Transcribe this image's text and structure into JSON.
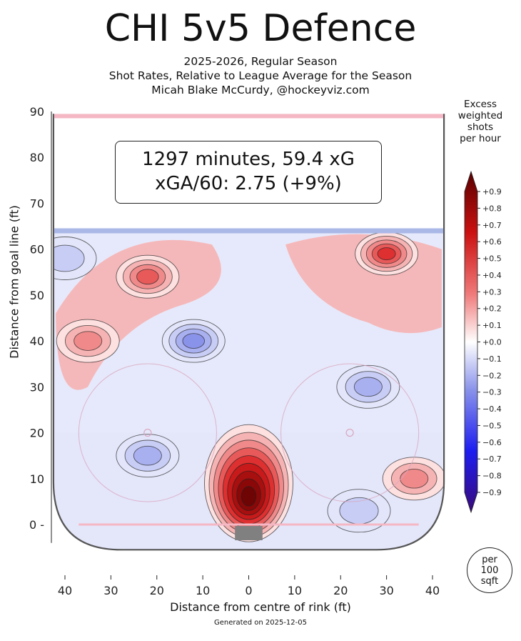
{
  "header": {
    "title": "CHI 5v5 Defence",
    "subtitle_lines": [
      "2025-2026, Regular Season",
      "Shot Rates, Relative to League Average for the Season",
      "Micah Blake McCurdy, @hockeyviz.com"
    ]
  },
  "summary_box": {
    "line1": "1297 minutes, 59.4 xG",
    "line2": "xGA/60: 2.75 (+9%)"
  },
  "legend": {
    "title_lines": [
      "Excess",
      "weighted",
      "shots",
      "per hour"
    ],
    "unit_lines": [
      "per",
      "100",
      "sqft"
    ]
  },
  "footer": {
    "generated": "Generated on 2025-12-05"
  },
  "colors": {
    "positive_strong": "#7a0a0a",
    "positive_mid": "#e83a3a",
    "positive_light": "#f6b3b3",
    "negative_light": "#c8cdf5",
    "negative_mid": "#6a75e0",
    "negative_strong": "#3a0a7a",
    "goal_line": "#f4b7c3",
    "blue_line": "#aab8e8",
    "net": "#808080"
  },
  "chart_data": {
    "type": "heatmap",
    "xlabel": "Distance from centre of rink (ft)",
    "ylabel": "Distance from goal line (ft)",
    "xlim": [
      -42,
      42
    ],
    "ylim": [
      -4,
      90
    ],
    "x_ticks": [
      {
        "value": -40,
        "label": "40"
      },
      {
        "value": -30,
        "label": "30"
      },
      {
        "value": -20,
        "label": "20"
      },
      {
        "value": -10,
        "label": "10"
      },
      {
        "value": 0,
        "label": "0"
      },
      {
        "value": 10,
        "label": "10"
      },
      {
        "value": 20,
        "label": "20"
      },
      {
        "value": 30,
        "label": "30"
      },
      {
        "value": 40,
        "label": "40"
      }
    ],
    "y_ticks": [
      {
        "value": 0,
        "label": "0 -"
      },
      {
        "value": 10,
        "label": "10"
      },
      {
        "value": 20,
        "label": "20"
      },
      {
        "value": 30,
        "label": "30"
      },
      {
        "value": 40,
        "label": "40"
      },
      {
        "value": 50,
        "label": "50"
      },
      {
        "value": 60,
        "label": "60"
      },
      {
        "value": 70,
        "label": "70"
      },
      {
        "value": 80,
        "label": "80"
      },
      {
        "value": 90,
        "label": "90"
      }
    ],
    "colorbar": {
      "range": [
        -0.9,
        0.9
      ],
      "tick_values": [
        0.9,
        0.8,
        0.7,
        0.6,
        0.5,
        0.4,
        0.3,
        0.2,
        0.1,
        0.0,
        -0.1,
        -0.2,
        -0.3,
        -0.4,
        -0.5,
        -0.6,
        -0.7,
        -0.8,
        -0.9
      ],
      "tick_labels": [
        "+0.9",
        "+0.8",
        "+0.7",
        "+0.6",
        "+0.5",
        "+0.4",
        "+0.3",
        "+0.2",
        "+0.1",
        "+0.0",
        "−0.1",
        "−0.2",
        "−0.3",
        "−0.4",
        "−0.5",
        "−0.6",
        "−0.7",
        "−0.8",
        "−0.9"
      ]
    },
    "rink": {
      "goal_line_y": 0,
      "blue_line_y": 64,
      "top_line_y": 89,
      "faceoff_dots": [
        [
          -22,
          20
        ],
        [
          22,
          20
        ]
      ],
      "faceoff_circle_radius": 15
    },
    "regions": [
      {
        "name": "slot-hotspot",
        "x": 0,
        "y": 9,
        "peak": 0.9
      },
      {
        "name": "right-point-high",
        "x": 30,
        "y": 59,
        "peak": 0.45
      },
      {
        "name": "left-point",
        "x": -22,
        "y": 54,
        "peak": 0.35
      },
      {
        "name": "left-boards",
        "x": -35,
        "y": 40,
        "peak": 0.25
      },
      {
        "name": "right-low-corner",
        "x": 36,
        "y": 10,
        "peak": 0.25
      },
      {
        "name": "high-slot-cold",
        "x": -12,
        "y": 40,
        "peak": -0.35
      },
      {
        "name": "right-circle-cold",
        "x": 26,
        "y": 30,
        "peak": -0.3
      },
      {
        "name": "left-circle-cold",
        "x": -22,
        "y": 15,
        "peak": -0.25
      },
      {
        "name": "left-point-cold",
        "x": -40,
        "y": 58,
        "peak": -0.15
      },
      {
        "name": "right-crease-cold",
        "x": 24,
        "y": 3,
        "peak": -0.2
      }
    ]
  }
}
